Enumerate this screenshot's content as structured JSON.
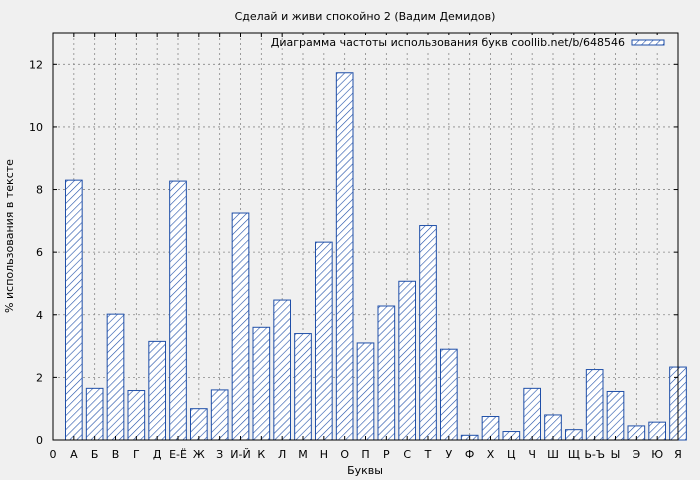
{
  "chart_data": {
    "type": "bar",
    "title": "Сделай и живи спокойно 2 (Вадим Демидов)",
    "xlabel": "Буквы",
    "ylabel": "% использования в тексте",
    "legend": "Диаграмма частоты использования букв coollib.net/b/648546",
    "legend_position": "top-right",
    "grid": true,
    "ylim": [
      0,
      13
    ],
    "yticks": [
      0,
      2,
      4,
      6,
      8,
      10,
      12
    ],
    "origin_label": "0",
    "categories": [
      "А",
      "Б",
      "В",
      "Г",
      "Д",
      "Е-Ё",
      "Ж",
      "З",
      "И-Й",
      "К",
      "Л",
      "М",
      "Н",
      "О",
      "П",
      "Р",
      "С",
      "Т",
      "У",
      "Ф",
      "Х",
      "Ц",
      "Ч",
      "Ш",
      "Щ",
      "Ь-Ъ",
      "Ы",
      "Э",
      "Ю",
      "Я"
    ],
    "values": [
      8.3,
      1.65,
      4.02,
      1.58,
      3.15,
      8.27,
      1.0,
      1.6,
      7.25,
      3.6,
      4.47,
      3.4,
      6.32,
      11.73,
      3.1,
      4.28,
      5.07,
      6.85,
      2.9,
      0.15,
      0.75,
      0.27,
      1.65,
      0.8,
      0.33,
      2.25,
      1.55,
      0.45,
      0.57,
      2.33
    ],
    "colors": {
      "bar_stroke": "#1f4fa8",
      "hatch": "#1f4fa8",
      "grid": "#888888",
      "background": "#f0f0f0"
    }
  }
}
